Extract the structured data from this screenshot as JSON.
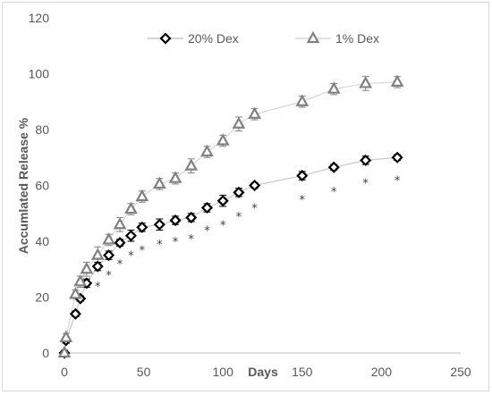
{
  "chart_data": {
    "type": "line",
    "xlabel": "Days",
    "ylabel": "Accumlated Release %",
    "xlim": [
      0,
      250
    ],
    "ylim": [
      0,
      120
    ],
    "x_ticks": [
      "0",
      "50",
      "100",
      "150",
      "200",
      "250"
    ],
    "y_ticks": [
      "0",
      "20",
      "40",
      "60",
      "80",
      "100",
      "120"
    ],
    "grid": false,
    "legend_position": "top",
    "annotation_symbol": "*",
    "series": [
      {
        "name": "20% Dex",
        "marker": "diamond",
        "color": "#000000",
        "line_color": "#c8c8c8",
        "points": [
          {
            "x": 0,
            "y": 0,
            "err": 1
          },
          {
            "x": 1,
            "y": 4.5,
            "err": 1
          },
          {
            "x": 7,
            "y": 14,
            "err": 1
          },
          {
            "x": 10,
            "y": 19.5,
            "err": 1
          },
          {
            "x": 14,
            "y": 25,
            "err": 1.5
          },
          {
            "x": 21,
            "y": 31,
            "err": 1.5
          },
          {
            "x": 28,
            "y": 35,
            "err": 1.5
          },
          {
            "x": 35,
            "y": 39.5,
            "err": 1.2
          },
          {
            "x": 42,
            "y": 42,
            "err": 2
          },
          {
            "x": 49,
            "y": 45,
            "err": 1.5
          },
          {
            "x": 60,
            "y": 46,
            "err": 2
          },
          {
            "x": 70,
            "y": 47.5,
            "err": 1.5
          },
          {
            "x": 80,
            "y": 48.5,
            "err": 1.5
          },
          {
            "x": 90,
            "y": 52,
            "err": 1.5
          },
          {
            "x": 100,
            "y": 54.5,
            "err": 2
          },
          {
            "x": 110,
            "y": 57.5,
            "err": 1.5
          },
          {
            "x": 120,
            "y": 60,
            "err": 1
          },
          {
            "x": 150,
            "y": 63.5,
            "err": 1.5
          },
          {
            "x": 170,
            "y": 66.5,
            "err": 1
          },
          {
            "x": 190,
            "y": 69,
            "err": 1.5
          },
          {
            "x": 210,
            "y": 70,
            "err": 1
          }
        ]
      },
      {
        "name": "1% Dex",
        "marker": "triangle",
        "color": "#808080",
        "line_color": "#d6d6d6",
        "points": [
          {
            "x": 0,
            "y": 0,
            "err": 1
          },
          {
            "x": 1,
            "y": 5.5,
            "err": 1.5
          },
          {
            "x": 7,
            "y": 21,
            "err": 1.5
          },
          {
            "x": 10,
            "y": 25.5,
            "err": 2
          },
          {
            "x": 14,
            "y": 30,
            "err": 2.5
          },
          {
            "x": 21,
            "y": 35,
            "err": 3
          },
          {
            "x": 28,
            "y": 40.5,
            "err": 2
          },
          {
            "x": 35,
            "y": 46,
            "err": 2.5
          },
          {
            "x": 42,
            "y": 51.5,
            "err": 2
          },
          {
            "x": 49,
            "y": 56,
            "err": 2
          },
          {
            "x": 60,
            "y": 60.5,
            "err": 2
          },
          {
            "x": 70,
            "y": 62.5,
            "err": 2
          },
          {
            "x": 80,
            "y": 67,
            "err": 2.5
          },
          {
            "x": 90,
            "y": 72,
            "err": 2
          },
          {
            "x": 100,
            "y": 76,
            "err": 2
          },
          {
            "x": 110,
            "y": 82,
            "err": 2.5
          },
          {
            "x": 120,
            "y": 85.5,
            "err": 2
          },
          {
            "x": 150,
            "y": 90,
            "err": 2
          },
          {
            "x": 170,
            "y": 94.5,
            "err": 2
          },
          {
            "x": 190,
            "y": 96.5,
            "err": 2.5
          },
          {
            "x": 210,
            "y": 97,
            "err": 2
          }
        ]
      }
    ],
    "significance_marks": [
      {
        "x": 21,
        "y": 24
      },
      {
        "x": 28,
        "y": 28
      },
      {
        "x": 35,
        "y": 32
      },
      {
        "x": 42,
        "y": 35
      },
      {
        "x": 49,
        "y": 37
      },
      {
        "x": 60,
        "y": 39
      },
      {
        "x": 70,
        "y": 40
      },
      {
        "x": 80,
        "y": 41
      },
      {
        "x": 90,
        "y": 44
      },
      {
        "x": 100,
        "y": 46
      },
      {
        "x": 110,
        "y": 49
      },
      {
        "x": 120,
        "y": 52
      },
      {
        "x": 150,
        "y": 55
      },
      {
        "x": 170,
        "y": 58
      },
      {
        "x": 190,
        "y": 61
      },
      {
        "x": 210,
        "y": 62
      }
    ]
  }
}
